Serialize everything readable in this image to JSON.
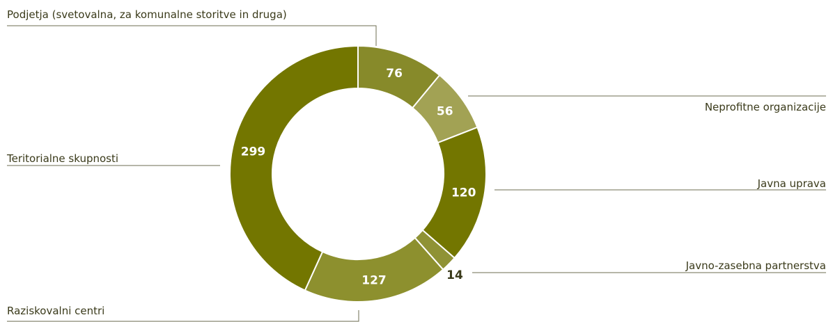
{
  "chart_data": {
    "type": "pie",
    "donut": true,
    "title": "",
    "legend": "none",
    "start_category": "Podjetja (svetovalna, za komunalne storitve in druga)",
    "direction": "clockwise",
    "slices": [
      {
        "label": "Podjetja (svetovalna, za komunalne storitve in druga)",
        "value": 76,
        "color": "#878a2a"
      },
      {
        "label": "Neprofitne organizacije",
        "value": 56,
        "color": "#a2a254"
      },
      {
        "label": "Javna uprava",
        "value": 120,
        "color": "#737600"
      },
      {
        "label": "Javno-zasebna partnerstva",
        "value": 14,
        "color": "#8f9235"
      },
      {
        "label": "Raziskovalni centri",
        "value": 127,
        "color": "#8d902e"
      },
      {
        "label": "Teritorialne skupnosti",
        "value": 299,
        "color": "#737600"
      }
    ],
    "value_label_color_inside": "#ffffff",
    "value_label_color_outside": "#3a3a1a"
  }
}
